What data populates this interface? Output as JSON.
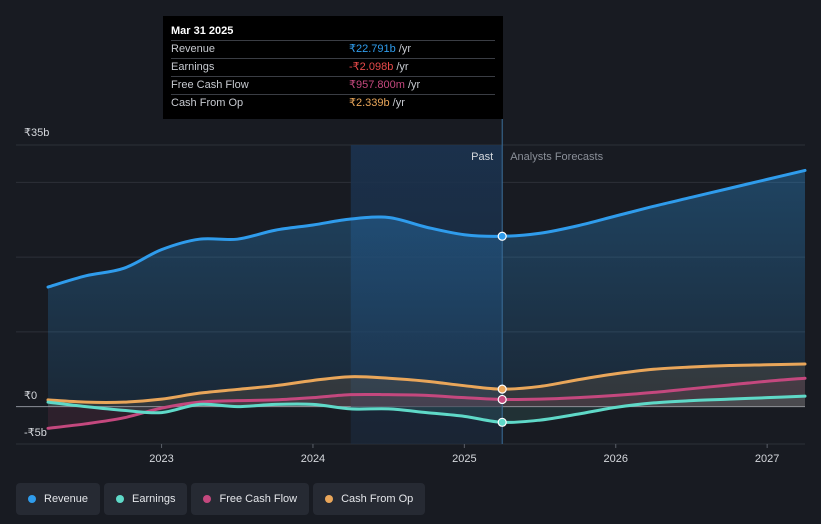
{
  "tooltip": {
    "date": "Mar 31 2025",
    "rows": [
      {
        "label": "Revenue",
        "value": "₹22.791b",
        "unit": "/yr",
        "color": "#2f9cec"
      },
      {
        "label": "Earnings",
        "value": "-₹2.098b",
        "unit": "/yr",
        "color": "#e84a4a"
      },
      {
        "label": "Free Cash Flow",
        "value": "₹957.800m",
        "unit": "/yr",
        "color": "#c4487e"
      },
      {
        "label": "Cash From Op",
        "value": "₹2.339b",
        "unit": "/yr",
        "color": "#e9a65a"
      }
    ]
  },
  "legend": [
    {
      "label": "Revenue",
      "color": "#2f9cec"
    },
    {
      "label": "Earnings",
      "color": "#5fd9c8"
    },
    {
      "label": "Free Cash Flow",
      "color": "#c4487e"
    },
    {
      "label": "Cash From Op",
      "color": "#e9a65a"
    }
  ],
  "chart_data": {
    "type": "area",
    "title": "",
    "xlabel": "",
    "ylabel": "",
    "currency": "INR",
    "ylim": [
      -5,
      35
    ],
    "xlim": [
      2022.25,
      2027.25
    ],
    "y_tick_labels": [
      "₹35b",
      "₹0",
      "-₹5b"
    ],
    "y_ticks": [
      35,
      0,
      -5
    ],
    "x_ticks": [
      2023,
      2024,
      2025,
      2026,
      2027
    ],
    "x_tick_labels": [
      "2023",
      "2024",
      "2025",
      "2026",
      "2027"
    ],
    "past_label": "Past",
    "forecast_label": "Analysts Forecasts",
    "past_region": [
      2024.25,
      2025.25
    ],
    "highlight_x": 2025.25,
    "series": [
      {
        "name": "Revenue",
        "color": "#2f9cec",
        "x": [
          2022.25,
          2022.5,
          2022.75,
          2023.0,
          2023.25,
          2023.5,
          2023.75,
          2024.0,
          2024.25,
          2024.5,
          2024.75,
          2025.0,
          2025.25,
          2025.5,
          2025.75,
          2026.0,
          2026.25,
          2026.5,
          2026.75,
          2027.0,
          2027.25
        ],
        "values": [
          16.0,
          17.5,
          18.5,
          21.0,
          22.4,
          22.4,
          23.6,
          24.3,
          25.1,
          25.3,
          24.0,
          23.0,
          22.79,
          23.2,
          24.2,
          25.5,
          26.8,
          28.0,
          29.2,
          30.4,
          31.6
        ]
      },
      {
        "name": "Earnings",
        "color": "#5fd9c8",
        "x": [
          2022.25,
          2022.5,
          2022.75,
          2023.0,
          2023.25,
          2023.5,
          2023.75,
          2024.0,
          2024.25,
          2024.5,
          2024.75,
          2025.0,
          2025.25,
          2025.5,
          2025.75,
          2026.0,
          2026.25,
          2026.5,
          2026.75,
          2027.0,
          2027.25
        ],
        "values": [
          0.6,
          0.0,
          -0.5,
          -0.8,
          0.3,
          0.0,
          0.3,
          0.3,
          -0.3,
          -0.3,
          -0.8,
          -1.3,
          -2.1,
          -1.8,
          -1.0,
          -0.1,
          0.5,
          0.8,
          1.0,
          1.2,
          1.4
        ]
      },
      {
        "name": "Free Cash Flow",
        "color": "#c4487e",
        "x": [
          2022.25,
          2022.5,
          2022.75,
          2023.0,
          2023.25,
          2023.5,
          2023.75,
          2024.0,
          2024.25,
          2024.5,
          2024.75,
          2025.0,
          2025.25,
          2025.5,
          2025.75,
          2026.0,
          2026.25,
          2026.5,
          2026.75,
          2027.0,
          2027.25
        ],
        "values": [
          -2.9,
          -2.3,
          -1.5,
          -0.2,
          0.6,
          0.8,
          0.9,
          1.2,
          1.6,
          1.6,
          1.5,
          1.2,
          0.96,
          1.0,
          1.2,
          1.5,
          1.9,
          2.4,
          2.9,
          3.4,
          3.8
        ]
      },
      {
        "name": "Cash From Op",
        "color": "#e9a65a",
        "x": [
          2022.25,
          2022.5,
          2022.75,
          2023.0,
          2023.25,
          2023.5,
          2023.75,
          2024.0,
          2024.25,
          2024.5,
          2024.75,
          2025.0,
          2025.25,
          2025.5,
          2025.75,
          2026.0,
          2026.25,
          2026.5,
          2026.75,
          2027.0,
          2027.25
        ],
        "values": [
          0.9,
          0.6,
          0.6,
          1.0,
          1.8,
          2.3,
          2.8,
          3.5,
          4.0,
          3.8,
          3.4,
          2.8,
          2.34,
          2.7,
          3.6,
          4.4,
          5.0,
          5.3,
          5.5,
          5.6,
          5.7
        ]
      }
    ]
  }
}
